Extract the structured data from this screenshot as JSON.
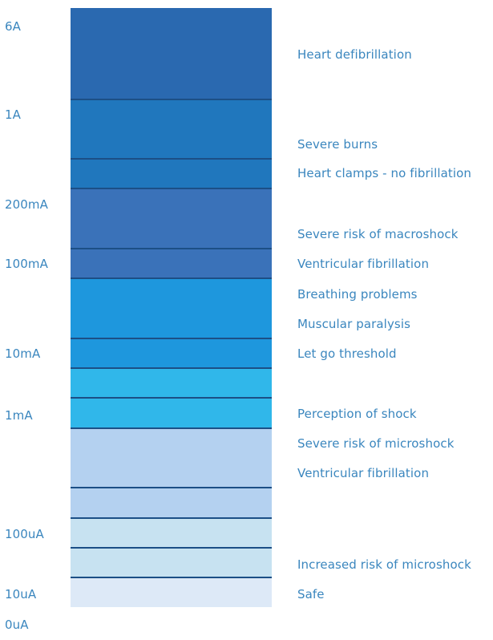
{
  "scale_labels": [
    "6A",
    "1A",
    "200mA",
    "100mA",
    "10mA",
    "1mA",
    "100uA",
    "10uA",
    "0uA"
  ],
  "effects": [
    "Heart defibrillation",
    "Severe burns",
    "Heart clamps - no fibrillation",
    "Severe risk of macroshock",
    "Ventricular fibrillation",
    "Breathing problems",
    "Muscular paralysis",
    "Let go threshold",
    "Perception of shock",
    "Severe risk of microshock",
    "Ventricular fibrillation",
    "Increased risk of microshock",
    "Safe"
  ],
  "colors": {
    "label_text": "#3a86be",
    "divider": "#1c4f86",
    "bands": [
      "#2a69b0",
      "#2077bd",
      "#2077bd",
      "#3a72b9",
      "#3a72b9",
      "#1e97dd",
      "#1e97dd",
      "#30b7ea",
      "#30b7ea",
      "#b4d1f0",
      "#b4d1f0",
      "#c7e2f1",
      "#c7e2f1",
      "#dde9f7"
    ]
  }
}
